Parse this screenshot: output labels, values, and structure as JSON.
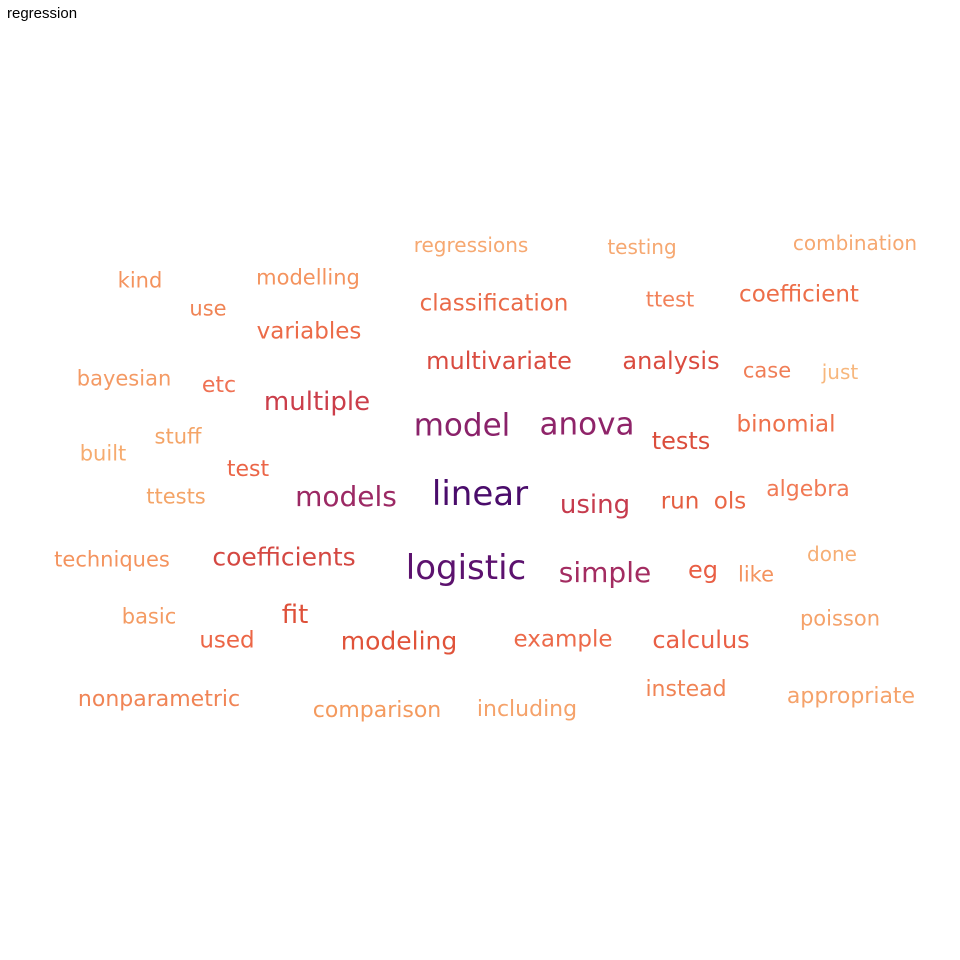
{
  "title": "regression",
  "words": [
    {
      "text": "linear",
      "weight": 10,
      "color": "#4a0c6b"
    },
    {
      "text": "logistic",
      "weight": 9.5,
      "color": "#5c126e"
    },
    {
      "text": "model",
      "weight": 8,
      "color": "#8a226a"
    },
    {
      "text": "anova",
      "weight": 8,
      "color": "#8f2469"
    },
    {
      "text": "models",
      "weight": 7.5,
      "color": "#9c2964"
    },
    {
      "text": "simple",
      "weight": 7.5,
      "color": "#a32c61"
    },
    {
      "text": "multiple",
      "weight": 6.5,
      "color": "#cb3e4a"
    },
    {
      "text": "using",
      "weight": 6.5,
      "color": "#c63b4d"
    },
    {
      "text": "coefficients",
      "weight": 6.5,
      "color": "#d44842"
    },
    {
      "text": "multivariate",
      "weight": 6,
      "color": "#d94b40"
    },
    {
      "text": "analysis",
      "weight": 6,
      "color": "#da4b3f"
    },
    {
      "text": "tests",
      "weight": 6,
      "color": "#db4e3d"
    },
    {
      "text": "modeling",
      "weight": 6,
      "color": "#e0533a"
    },
    {
      "text": "fit",
      "weight": 6,
      "color": "#de5039"
    },
    {
      "text": "classification",
      "weight": 5.5,
      "color": "#ea6a48"
    },
    {
      "text": "variables",
      "weight": 5.5,
      "color": "#ec6b48"
    },
    {
      "text": "coefficient",
      "weight": 5.5,
      "color": "#ed6e49"
    },
    {
      "text": "binomial",
      "weight": 5.5,
      "color": "#ee704b"
    },
    {
      "text": "test",
      "weight": 5.5,
      "color": "#eb6547"
    },
    {
      "text": "run",
      "weight": 5.5,
      "color": "#e45e40"
    },
    {
      "text": "ols",
      "weight": 5.5,
      "color": "#ea6746"
    },
    {
      "text": "algebra",
      "weight": 5.5,
      "color": "#f17a55"
    },
    {
      "text": "eg",
      "weight": 5.5,
      "color": "#e95e44"
    },
    {
      "text": "example",
      "weight": 5.5,
      "color": "#ec6a4a"
    },
    {
      "text": "calculus",
      "weight": 5.5,
      "color": "#e95f45"
    },
    {
      "text": "used",
      "weight": 5.5,
      "color": "#ec6646"
    },
    {
      "text": "etc",
      "weight": 5,
      "color": "#ef7153"
    },
    {
      "text": "case",
      "weight": 5,
      "color": "#f07e57"
    },
    {
      "text": "ttest",
      "weight": 5,
      "color": "#f28159"
    },
    {
      "text": "modelling",
      "weight": 5,
      "color": "#f4935e"
    },
    {
      "text": "use",
      "weight": 5,
      "color": "#f08455"
    },
    {
      "text": "kind",
      "weight": 5,
      "color": "#f4935e"
    },
    {
      "text": "bayesian",
      "weight": 5,
      "color": "#f49a64"
    },
    {
      "text": "stuff",
      "weight": 5,
      "color": "#f4a467"
    },
    {
      "text": "built",
      "weight": 5,
      "color": "#f6ab6f"
    },
    {
      "text": "ttests",
      "weight": 5,
      "color": "#f4a467"
    },
    {
      "text": "techniques",
      "weight": 5,
      "color": "#f4935e"
    },
    {
      "text": "basic",
      "weight": 5,
      "color": "#f49b63"
    },
    {
      "text": "like",
      "weight": 5,
      "color": "#f4935e"
    },
    {
      "text": "done",
      "weight": 5,
      "color": "#f6ae74"
    },
    {
      "text": "poisson",
      "weight": 5,
      "color": "#f5a26a"
    },
    {
      "text": "just",
      "weight": 5,
      "color": "#f7b77d"
    },
    {
      "text": "regressions",
      "weight": 5,
      "color": "#f6a871"
    },
    {
      "text": "testing",
      "weight": 5,
      "color": "#f6a871"
    },
    {
      "text": "combination",
      "weight": 5,
      "color": "#f6a871"
    },
    {
      "text": "nonparametric",
      "weight": 5.5,
      "color": "#f08455"
    },
    {
      "text": "comparison",
      "weight": 5.5,
      "color": "#f49a5e"
    },
    {
      "text": "including",
      "weight": 5.5,
      "color": "#f5a26a"
    },
    {
      "text": "instead",
      "weight": 5.5,
      "color": "#f08455"
    },
    {
      "text": "appropriate",
      "weight": 5.5,
      "color": "#f5a26a"
    }
  ]
}
